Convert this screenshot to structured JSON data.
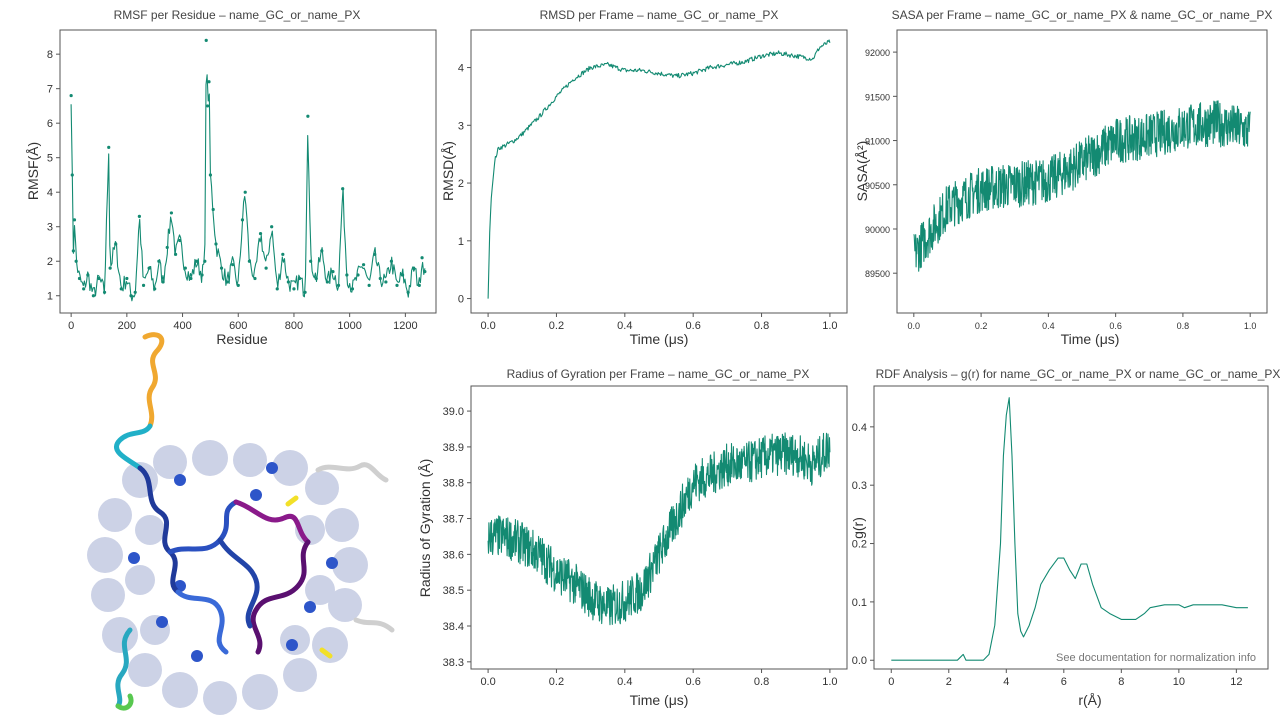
{
  "theme": {
    "series_color": "#138a72"
  },
  "chart_data": [
    {
      "id": "rmsf",
      "type": "line",
      "title": "RMSF per Residue – name_GC_or_name_PX",
      "xlabel": "Residue",
      "ylabel": "RMSF(Å)",
      "xlim": [
        -40,
        1310
      ],
      "ylim": [
        0.5,
        8.7
      ],
      "xticks": [
        0,
        200,
        400,
        600,
        800,
        1000,
        1200
      ],
      "yticks": [
        1,
        2,
        3,
        4,
        5,
        6,
        7,
        8
      ],
      "markers": true,
      "x": [
        0,
        4,
        8,
        12,
        18,
        30,
        45,
        60,
        80,
        100,
        120,
        135,
        140,
        160,
        180,
        200,
        215,
        230,
        245,
        260,
        280,
        300,
        315,
        330,
        345,
        360,
        375,
        390,
        410,
        430,
        450,
        470,
        480,
        485,
        490,
        495,
        500,
        510,
        520,
        540,
        560,
        580,
        600,
        615,
        625,
        640,
        660,
        680,
        700,
        720,
        740,
        760,
        780,
        800,
        820,
        840,
        850,
        860,
        880,
        900,
        920,
        940,
        960,
        975,
        990,
        1010,
        1030,
        1050,
        1070,
        1090,
        1110,
        1130,
        1150,
        1170,
        1190,
        1210,
        1230,
        1250,
        1260,
        1270
      ],
      "values": [
        6.8,
        4.5,
        2.3,
        3.2,
        2.0,
        1.5,
        1.2,
        1.6,
        1.0,
        1.5,
        1.1,
        5.3,
        1.8,
        2.5,
        1.2,
        1.5,
        1.0,
        1.1,
        3.3,
        1.3,
        1.8,
        1.2,
        2.0,
        1.4,
        2.4,
        3.4,
        2.2,
        2.6,
        1.8,
        1.5,
        2.0,
        1.6,
        2.0,
        8.4,
        6.5,
        7.2,
        4.5,
        3.5,
        2.5,
        1.8,
        1.4,
        1.9,
        1.3,
        3.2,
        4.0,
        2.0,
        1.5,
        2.8,
        1.8,
        3.0,
        1.2,
        2.2,
        1.4,
        1.2,
        1.5,
        1.1,
        6.2,
        2.0,
        1.5,
        2.3,
        1.4,
        1.7,
        1.3,
        4.1,
        1.6,
        1.2,
        1.6,
        1.9,
        1.3,
        2.2,
        1.5,
        1.4,
        2.0,
        1.3,
        1.6,
        1.1,
        1.8,
        1.3,
        2.1,
        1.7
      ]
    },
    {
      "id": "rmsd",
      "type": "line",
      "title": "RMSD per Frame – name_GC_or_name_PX",
      "xlabel": "Time (μs)",
      "ylabel": "RMSD(Å)",
      "xlim": [
        -0.05,
        1.05
      ],
      "ylim": [
        -0.25,
        4.65
      ],
      "xticks": [
        "0.0",
        "0.2",
        "0.4",
        "0.6",
        "0.8",
        "1.0"
      ],
      "yticks": [
        "0",
        "1",
        "2",
        "3",
        "4"
      ],
      "x": [
        0,
        0.005,
        0.01,
        0.015,
        0.02,
        0.03,
        0.05,
        0.08,
        0.1,
        0.15,
        0.2,
        0.25,
        0.3,
        0.35,
        0.4,
        0.45,
        0.5,
        0.55,
        0.6,
        0.65,
        0.7,
        0.75,
        0.8,
        0.85,
        0.9,
        0.95,
        0.97,
        1.0
      ],
      "values": [
        0,
        1.2,
        1.8,
        2.1,
        2.4,
        2.6,
        2.65,
        2.75,
        2.85,
        3.15,
        3.5,
        3.8,
        4.0,
        4.05,
        3.95,
        3.95,
        3.9,
        3.85,
        3.9,
        4.0,
        4.05,
        4.1,
        4.2,
        4.25,
        4.2,
        4.15,
        4.35,
        4.45
      ]
    },
    {
      "id": "sasa",
      "type": "line",
      "title": "SASA per Frame – name_GC_or_name_PX & name_GC_or_name_PX",
      "xlabel": "Time (μs)",
      "ylabel": "SASA(Å²)",
      "xlim": [
        -0.05,
        1.05
      ],
      "ylim": [
        89050,
        92250
      ],
      "xticks": [
        "0.0",
        "0.2",
        "0.4",
        "0.6",
        "0.8",
        "1.0"
      ],
      "yticks": [
        "89500",
        "90000",
        "90500",
        "91000",
        "91500",
        "92000"
      ],
      "x": [
        0,
        0.1,
        0.2,
        0.3,
        0.4,
        0.5,
        0.6,
        0.7,
        0.8,
        0.9,
        1.0
      ],
      "values": [
        89700,
        90250,
        90450,
        90500,
        90550,
        90750,
        91000,
        91050,
        91150,
        91200,
        91100
      ]
    },
    {
      "id": "rg",
      "type": "line",
      "title": "Radius of Gyration per Frame – name_GC_or_name_PX",
      "xlabel": "Time (μs)",
      "ylabel": "Radius of Gyration (Å)",
      "xlim": [
        -0.05,
        1.05
      ],
      "ylim": [
        38.28,
        39.07
      ],
      "xticks": [
        "0.0",
        "0.2",
        "0.4",
        "0.6",
        "0.8",
        "1.0"
      ],
      "yticks": [
        "38.3",
        "38.4",
        "38.5",
        "38.6",
        "38.7",
        "38.8",
        "38.9",
        "39.0"
      ],
      "x": [
        0,
        0.05,
        0.1,
        0.15,
        0.2,
        0.25,
        0.3,
        0.35,
        0.4,
        0.45,
        0.5,
        0.55,
        0.6,
        0.65,
        0.7,
        0.75,
        0.8,
        0.85,
        0.9,
        0.95,
        1.0
      ],
      "values": [
        38.65,
        38.65,
        38.63,
        38.6,
        38.55,
        38.52,
        38.48,
        38.45,
        38.47,
        38.5,
        38.6,
        38.7,
        38.8,
        38.82,
        38.85,
        38.85,
        38.87,
        38.88,
        38.88,
        38.85,
        38.9
      ]
    },
    {
      "id": "rdf",
      "type": "line",
      "title": "RDF Analysis – g(r) for name_GC_or_name_PX or name_GC_or_name_PX",
      "xlabel": "r(Å)",
      "ylabel": "g(r)",
      "xlim": [
        -0.6,
        13.1
      ],
      "ylim": [
        -0.015,
        0.47
      ],
      "xticks": [
        "0",
        "2",
        "4",
        "6",
        "8",
        "10",
        "12"
      ],
      "yticks": [
        "0.0",
        "0.1",
        "0.2",
        "0.3",
        "0.4"
      ],
      "note": "See documentation for normalization info",
      "x": [
        0,
        2.3,
        2.4,
        2.5,
        2.6,
        3.2,
        3.4,
        3.6,
        3.8,
        3.9,
        4.0,
        4.1,
        4.2,
        4.3,
        4.4,
        4.5,
        4.6,
        4.8,
        5.0,
        5.2,
        5.5,
        5.8,
        6.0,
        6.2,
        6.4,
        6.6,
        6.8,
        7.0,
        7.3,
        7.6,
        8.0,
        8.5,
        8.8,
        9.0,
        9.5,
        10.0,
        10.2,
        10.5,
        11.0,
        11.5,
        12.0,
        12.4
      ],
      "values": [
        0,
        0,
        0.005,
        0.01,
        0,
        0,
        0.01,
        0.06,
        0.2,
        0.35,
        0.42,
        0.45,
        0.35,
        0.2,
        0.08,
        0.05,
        0.04,
        0.06,
        0.09,
        0.13,
        0.155,
        0.175,
        0.175,
        0.155,
        0.14,
        0.165,
        0.165,
        0.13,
        0.09,
        0.08,
        0.07,
        0.07,
        0.08,
        0.09,
        0.095,
        0.095,
        0.09,
        0.095,
        0.095,
        0.095,
        0.09,
        0.09
      ]
    }
  ]
}
